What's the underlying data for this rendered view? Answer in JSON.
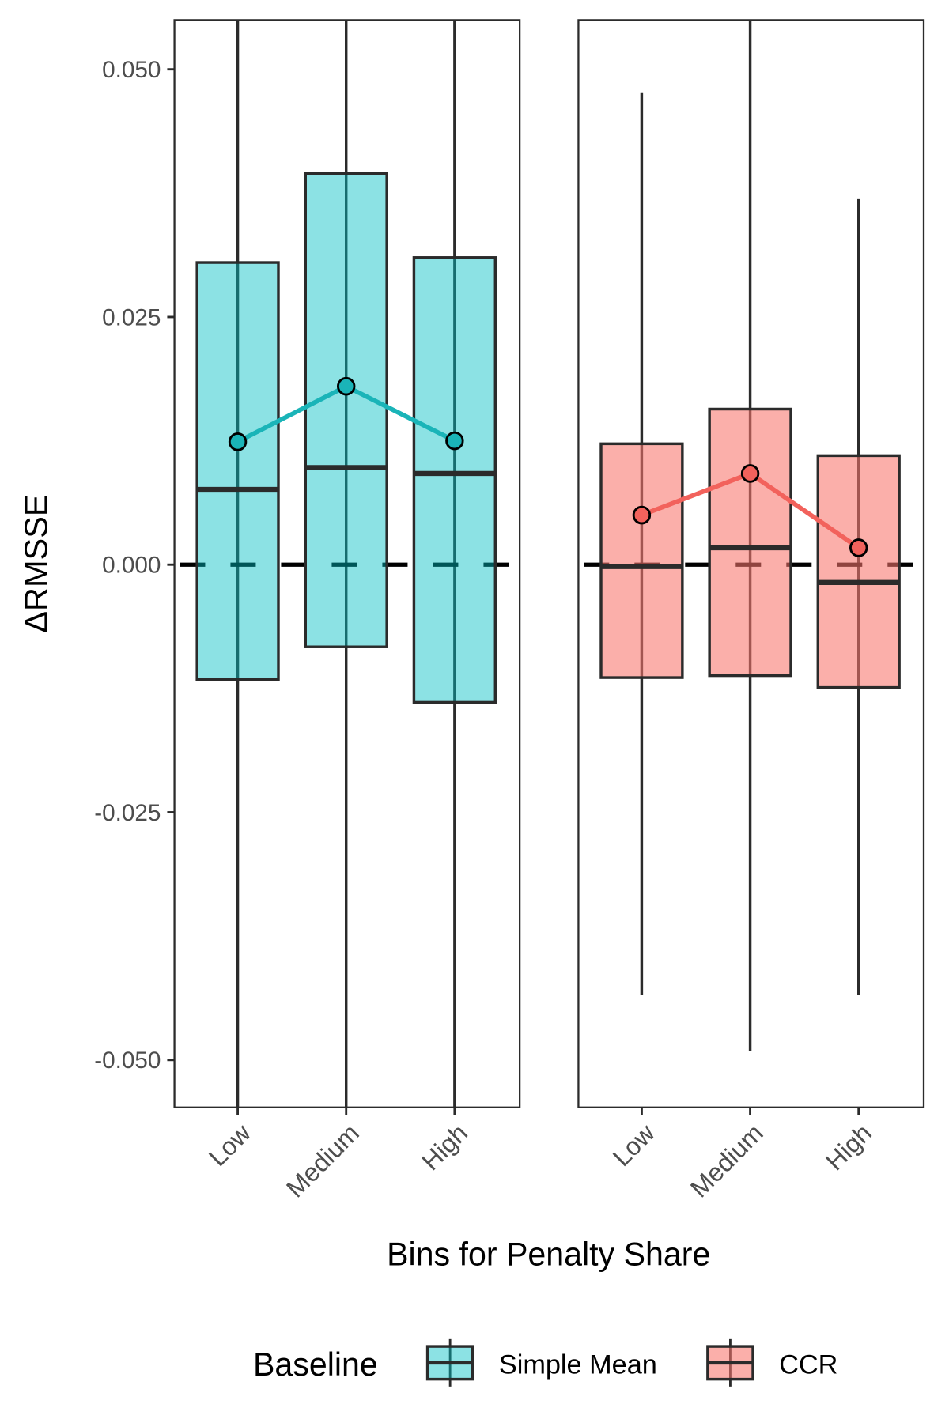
{
  "chart_data": {
    "type": "box",
    "xlabel": "Bins for Penalty Share",
    "ylabel": "ΔRMSSE",
    "ylim": [
      -0.0548,
      0.055
    ],
    "yticks": [
      0.05,
      0.025,
      0.0,
      -0.025,
      -0.05
    ],
    "ytick_labels": [
      "0.050",
      "0.025",
      "0.000",
      "-0.025",
      "-0.050"
    ],
    "categories": [
      "Low",
      "Medium",
      "High"
    ],
    "reference_line": {
      "y": 0,
      "style": "dashed",
      "color": "#000000"
    },
    "grid": false,
    "legend": {
      "title": "Baseline",
      "position": "bottom",
      "entries": [
        "Simple Mean",
        "CCR"
      ]
    },
    "panels": [
      {
        "series": "Simple Mean",
        "fill": "#00BFC4",
        "line_color": "#1AB4B8",
        "boxes": [
          {
            "category": "Low",
            "whisker_low": -0.0548,
            "q1": -0.0116,
            "median": 0.0076,
            "q3": 0.0305,
            "whisker_high": 0.055,
            "mean": 0.0124
          },
          {
            "category": "Medium",
            "whisker_low": -0.0548,
            "q1": -0.0083,
            "median": 0.0098,
            "q3": 0.0395,
            "whisker_high": 0.055,
            "mean": 0.018
          },
          {
            "category": "High",
            "whisker_low": -0.0548,
            "q1": -0.0139,
            "median": 0.0092,
            "q3": 0.031,
            "whisker_high": 0.055,
            "mean": 0.0125
          }
        ]
      },
      {
        "series": "CCR",
        "fill": "#F8766D",
        "line_color": "#F2625C",
        "boxes": [
          {
            "category": "Low",
            "whisker_low": -0.0434,
            "q1": -0.0114,
            "median": -0.0002,
            "q3": 0.0122,
            "whisker_high": 0.0476,
            "mean": 0.005
          },
          {
            "category": "Medium",
            "whisker_low": -0.0491,
            "q1": -0.0112,
            "median": 0.0017,
            "q3": 0.0157,
            "whisker_high": 0.055,
            "mean": 0.0092
          },
          {
            "category": "High",
            "whisker_low": -0.0434,
            "q1": -0.0124,
            "median": -0.0018,
            "q3": 0.011,
            "whisker_high": 0.0369,
            "mean": 0.0017
          }
        ]
      }
    ]
  }
}
